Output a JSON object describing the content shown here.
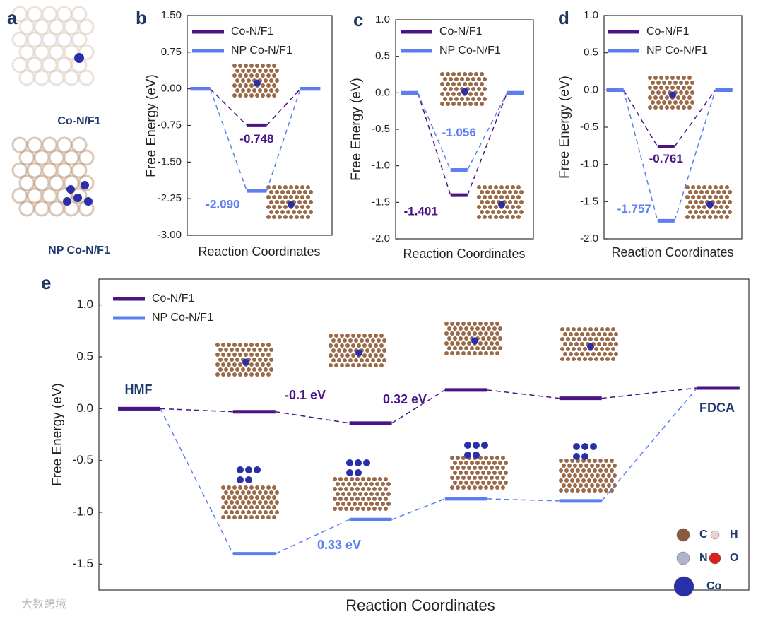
{
  "chart_data": [
    {
      "type": "energy",
      "xlabel": "Reaction Coordinates",
      "ylabel": "Free Energy (eV)",
      "legend": "upper left",
      "ylim": [
        -3,
        1.5
      ],
      "yticks": [
        {
          "value": 1.5,
          "label": "1.50"
        },
        {
          "value": 0.75,
          "label": "0.75"
        },
        {
          "value": 0,
          "label": "0.00"
        },
        {
          "value": -0.75,
          "label": "-0.75"
        },
        {
          "value": -1.5,
          "label": "-1.50"
        },
        {
          "value": -2.25,
          "label": "-2.25"
        },
        {
          "value": -3,
          "label": "-3.00"
        }
      ],
      "series": [
        {
          "name": "Co-N/F1",
          "color": "#4a1486",
          "values": [
            0,
            -0.748,
            0
          ],
          "value_labels": [
            null,
            "-0.748",
            null
          ]
        },
        {
          "name": "NP Co-N/F1",
          "color": "#5b7ff0",
          "values": [
            0,
            -2.09,
            0
          ],
          "value_labels": [
            null,
            "-2.090",
            null
          ]
        }
      ]
    },
    {
      "type": "energy",
      "xlabel": "Reaction Coordinates",
      "ylabel": "Free Energy (eV)",
      "legend": "upper left",
      "ylim": [
        -2,
        1
      ],
      "yticks": [
        {
          "value": 1,
          "label": "1.0"
        },
        0.5,
        {
          "value": 0,
          "label": "0.0"
        },
        -0.5,
        {
          "value": -1,
          "label": "-1.0"
        },
        -1.5,
        {
          "value": -2,
          "label": "-2.0"
        }
      ],
      "series": [
        {
          "name": "Co-N/F1",
          "color": "#4a1486",
          "values": [
            0,
            -1.401,
            0
          ],
          "value_labels": [
            null,
            "-1.401",
            null
          ]
        },
        {
          "name": "NP Co-N/F1",
          "color": "#5b7ff0",
          "values": [
            0,
            -1.056,
            0
          ],
          "value_labels": [
            null,
            "-1.056",
            null
          ]
        }
      ]
    },
    {
      "type": "energy",
      "xlabel": "Reaction Coordinates",
      "ylabel": "Free Energy (eV)",
      "legend": "upper left",
      "ylim": [
        -2,
        1
      ],
      "yticks": [
        {
          "value": 1,
          "label": "1.0"
        },
        0.5,
        {
          "value": 0,
          "label": "0.0"
        },
        -0.5,
        {
          "value": -1,
          "label": "-1.0"
        },
        -1.5,
        {
          "value": -2,
          "label": "-2.0"
        }
      ],
      "series": [
        {
          "name": "Co-N/F1",
          "color": "#4a1486",
          "values": [
            0,
            -0.761,
            0
          ],
          "value_labels": [
            null,
            "-0.761",
            null
          ]
        },
        {
          "name": "NP Co-N/F1",
          "color": "#5b7ff0",
          "values": [
            0,
            -1.757,
            0
          ],
          "value_labels": [
            null,
            "-1.757",
            null
          ]
        }
      ]
    },
    {
      "type": "energy",
      "xlabel": "Reaction Coordinates",
      "ylabel": "Free Energy (eV)",
      "legend": "upper left",
      "ylim": [
        -1.75,
        1.25
      ],
      "yticks": [
        {
          "value": 1,
          "label": "1.0"
        },
        0.5,
        {
          "value": 0,
          "label": "0.0"
        },
        -0.5,
        {
          "value": -1,
          "label": "-1.0"
        },
        -1.5
      ],
      "series": [
        {
          "name": "NP Co-N/F1",
          "color": "#5b7ff0",
          "values": [
            0,
            -1.4,
            -1.07,
            -0.87,
            -0.89,
            0.2
          ]
        },
        {
          "name": "Co-N/F1",
          "color": "#4a1486",
          "values": [
            0,
            -0.03,
            -0.14,
            0.18,
            0.1,
            0.2
          ]
        }
      ],
      "annotations": [
        {
          "text": "HMF",
          "color": "#1f3a6e"
        },
        {
          "text": "FDCA",
          "color": "#1f3a6e"
        },
        {
          "text": "-0.1 eV",
          "color": "#4a1486"
        },
        {
          "text": "0.32 eV",
          "color": "#4a1486"
        },
        {
          "text": "0.33 eV",
          "color": "#5b7ff0"
        }
      ]
    }
  ],
  "panel_labels": [
    "a",
    "b",
    "c",
    "d",
    "e"
  ],
  "panel_a": {
    "top": "Co-N/F1",
    "bottom": "NP Co-N/F1"
  },
  "atom_legend": [
    {
      "symbol": "C",
      "color": "#8b5a3c"
    },
    {
      "symbol": "H",
      "color": "#f0d0d0"
    },
    {
      "symbol": "N",
      "color": "#b0b4c8"
    },
    {
      "symbol": "O",
      "color": "#d8201c"
    },
    {
      "symbol": "Co",
      "color": "#2a2fa8"
    }
  ],
  "watermark": "大数跨境"
}
